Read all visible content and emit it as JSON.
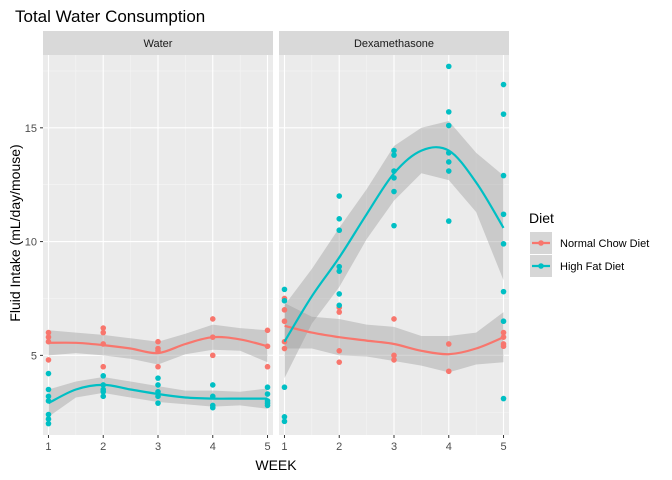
{
  "chart_data": {
    "type": "scatter",
    "title": "Total Water Consumption",
    "xlabel": "WEEK",
    "ylabel": "Fluid Intake (mL/day/mouse)",
    "xlim": [
      0.9,
      5.1
    ],
    "ylim": [
      1.5,
      18.2
    ],
    "x_ticks": [
      1,
      2,
      3,
      4,
      5
    ],
    "y_ticks": [
      5,
      10,
      15
    ],
    "grid": true,
    "legend_position": "right",
    "legend_title": "Diet",
    "colors": {
      "Normal Chow Diet": "#F8766D",
      "High Fat Diet": "#00BFC4",
      "panel_bg": "#EBEBEB",
      "strip_bg": "#D9D9D9",
      "ribbon": "#999999"
    },
    "panels": [
      {
        "strip": "Water",
        "series": [
          {
            "name": "Normal Chow Diet",
            "points": [
              [
                1,
                6.0
              ],
              [
                1,
                5.8
              ],
              [
                1,
                5.6
              ],
              [
                1,
                4.8
              ],
              [
                2,
                6.2
              ],
              [
                2,
                6.0
              ],
              [
                2,
                5.5
              ],
              [
                2,
                4.5
              ],
              [
                3,
                5.6
              ],
              [
                3,
                5.3
              ],
              [
                3,
                5.2
              ],
              [
                3,
                4.5
              ],
              [
                4,
                6.6
              ],
              [
                4,
                5.8
              ],
              [
                4,
                5.0
              ],
              [
                5,
                6.1
              ],
              [
                5,
                5.4
              ],
              [
                5,
                4.5
              ]
            ],
            "smooth": [
              [
                1,
                5.55
              ],
              [
                1.5,
                5.55
              ],
              [
                2,
                5.45
              ],
              [
                2.5,
                5.3
              ],
              [
                3,
                5.1
              ],
              [
                3.5,
                5.5
              ],
              [
                4,
                5.8
              ],
              [
                4.5,
                5.7
              ],
              [
                5,
                5.4
              ]
            ],
            "ribbon_halfwidth": [
              0.55,
              0.45,
              0.45,
              0.45,
              0.5,
              0.45,
              0.55,
              0.5,
              0.7
            ]
          },
          {
            "name": "High Fat Diet",
            "points": [
              [
                1,
                4.2
              ],
              [
                1,
                3.5
              ],
              [
                1,
                3.2
              ],
              [
                1,
                3.0
              ],
              [
                1,
                2.4
              ],
              [
                1,
                2.2
              ],
              [
                1,
                2.0
              ],
              [
                2,
                4.1
              ],
              [
                2,
                3.7
              ],
              [
                2,
                3.5
              ],
              [
                2,
                3.4
              ],
              [
                2,
                3.2
              ],
              [
                3,
                4.0
              ],
              [
                3,
                3.7
              ],
              [
                3,
                3.4
              ],
              [
                3,
                3.2
              ],
              [
                3,
                2.9
              ],
              [
                4,
                3.7
              ],
              [
                4,
                3.2
              ],
              [
                4,
                2.8
              ],
              [
                4,
                2.7
              ],
              [
                5,
                3.6
              ],
              [
                5,
                3.3
              ],
              [
                5,
                3.0
              ],
              [
                5,
                2.9
              ],
              [
                5,
                2.8
              ]
            ],
            "smooth": [
              [
                1,
                2.9
              ],
              [
                1.5,
                3.5
              ],
              [
                2,
                3.7
              ],
              [
                2.5,
                3.5
              ],
              [
                3,
                3.3
              ],
              [
                3.5,
                3.15
              ],
              [
                4,
                3.1
              ],
              [
                4.5,
                3.1
              ],
              [
                5,
                3.1
              ]
            ],
            "ribbon_halfwidth": [
              0.6,
              0.35,
              0.35,
              0.35,
              0.35,
              0.3,
              0.35,
              0.3,
              0.45
            ]
          }
        ]
      },
      {
        "strip": "Dexamethasone",
        "series": [
          {
            "name": "Normal Chow Diet",
            "points": [
              [
                1,
                7.5
              ],
              [
                1,
                7.0
              ],
              [
                1,
                6.5
              ],
              [
                1,
                5.6
              ],
              [
                1,
                5.3
              ],
              [
                2,
                7.1
              ],
              [
                2,
                6.9
              ],
              [
                2,
                5.2
              ],
              [
                2,
                4.7
              ],
              [
                3,
                6.6
              ],
              [
                3,
                5.0
              ],
              [
                3,
                4.8
              ],
              [
                4,
                5.5
              ],
              [
                4,
                4.3
              ],
              [
                5,
                6.0
              ],
              [
                5,
                5.8
              ],
              [
                5,
                5.5
              ],
              [
                5,
                5.4
              ]
            ],
            "smooth": [
              [
                1,
                6.3
              ],
              [
                1.5,
                6.0
              ],
              [
                2,
                5.8
              ],
              [
                2.5,
                5.65
              ],
              [
                3,
                5.5
              ],
              [
                3.5,
                5.2
              ],
              [
                4,
                5.05
              ],
              [
                4.5,
                5.3
              ],
              [
                5,
                5.8
              ]
            ],
            "ribbon_halfwidth": [
              1.0,
              0.7,
              0.8,
              0.7,
              0.75,
              0.65,
              0.8,
              0.7,
              1.1
            ]
          },
          {
            "name": "High Fat Diet",
            "points": [
              [
                1,
                7.9
              ],
              [
                1,
                7.4
              ],
              [
                1,
                3.6
              ],
              [
                1,
                2.3
              ],
              [
                1,
                2.1
              ],
              [
                2,
                12.0
              ],
              [
                2,
                11.0
              ],
              [
                2,
                10.5
              ],
              [
                2,
                8.9
              ],
              [
                2,
                8.7
              ],
              [
                2,
                7.7
              ],
              [
                2,
                7.2
              ],
              [
                3,
                14.0
              ],
              [
                3,
                13.8
              ],
              [
                3,
                13.1
              ],
              [
                3,
                12.8
              ],
              [
                3,
                12.2
              ],
              [
                3,
                10.7
              ],
              [
                4,
                17.7
              ],
              [
                4,
                15.7
              ],
              [
                4,
                15.1
              ],
              [
                4,
                13.9
              ],
              [
                4,
                13.5
              ],
              [
                4,
                13.1
              ],
              [
                4,
                10.9
              ],
              [
                5,
                16.9
              ],
              [
                5,
                15.6
              ],
              [
                5,
                12.9
              ],
              [
                5,
                11.2
              ],
              [
                5,
                9.9
              ],
              [
                5,
                7.8
              ],
              [
                5,
                6.5
              ],
              [
                5,
                3.1
              ]
            ],
            "smooth": [
              [
                1,
                5.6
              ],
              [
                1.5,
                7.6
              ],
              [
                2,
                9.3
              ],
              [
                2.5,
                11.2
              ],
              [
                3,
                13.0
              ],
              [
                3.5,
                14.0
              ],
              [
                4,
                14.0
              ],
              [
                4.5,
                12.6
              ],
              [
                5,
                10.6
              ]
            ],
            "ribbon_halfwidth": [
              1.6,
              1.2,
              1.3,
              1.1,
              1.2,
              1.0,
              1.3,
              1.3,
              2.3
            ]
          }
        ]
      }
    ]
  }
}
